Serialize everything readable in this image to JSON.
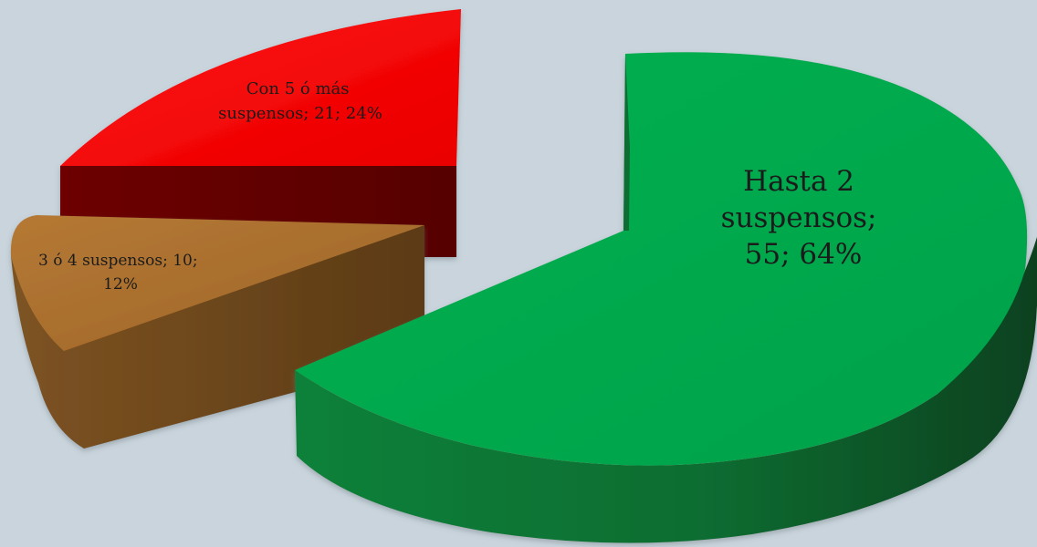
{
  "chart_data": {
    "type": "pie",
    "style": "3d-exploded",
    "background": "#c9d4dc",
    "slices": [
      {
        "category": "Hasta 2 suspensos",
        "value": 55,
        "percent": 64,
        "label_lines": [
          "Hasta 2",
          "suspensos;",
          "55; 64%"
        ],
        "color_top": "#00b050",
        "color_side": "#0f6a2f"
      },
      {
        "category": "3 ó 4 suspensos",
        "value": 10,
        "percent": 12,
        "label_lines": [
          "3 ó 4 suspensos; 10;",
          "12%"
        ],
        "color_top": "#a56b2a",
        "color_side": "#5f3d17"
      },
      {
        "category": "Con 5 ó más suspensos",
        "value": 21,
        "percent": 24,
        "label_lines": [
          "Con 5 ó más",
          "suspensos; 21; 24%"
        ],
        "color_top": "#ff0000",
        "color_side": "#650000"
      }
    ]
  }
}
